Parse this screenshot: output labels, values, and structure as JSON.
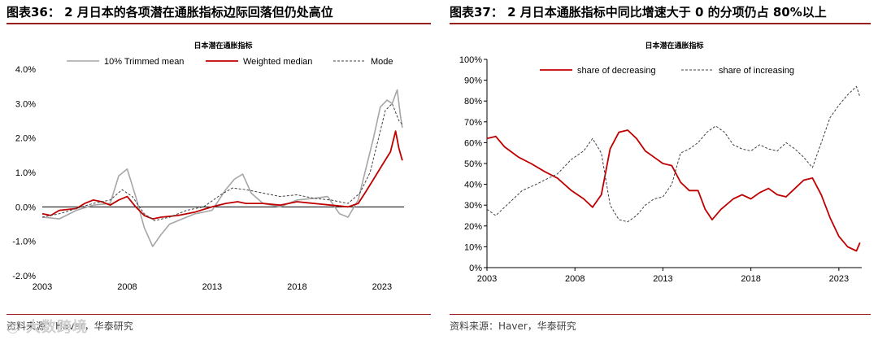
{
  "left": {
    "panel_title": "图表36：  2 月日本的各项潜在通胀指标边际回落但仍处高位",
    "source": "资料来源：Haver，华泰研究",
    "watermark": "大数跨境"
  },
  "right": {
    "panel_title": "图表37：  2 月日本通胀指标中同比增速大于 0 的分项仍占 80%以上",
    "source": "资料来源：Haver，华泰研究"
  },
  "colors": {
    "accent": "#9a1f1f",
    "series_red": "#c00000",
    "series_gray": "#a6a6a6",
    "series_dash": "#404040"
  },
  "chart_data": [
    {
      "type": "line",
      "title": "日本潜在通胀指标",
      "x_ticks": [
        "2003",
        "2008",
        "2013",
        "2018",
        "2023"
      ],
      "y_ticks": [
        "4.0%",
        "3.0%",
        "2.0%",
        "1.0%",
        "0.0%",
        "-1.0%",
        "-2.0%"
      ],
      "ylim": [
        -2.0,
        4.0
      ],
      "xlim": [
        2003,
        2024.3
      ],
      "legend_position": "top",
      "series": [
        {
          "name": "10%  Trimmed mean",
          "style": "gray-solid",
          "points": [
            [
              2003,
              -0.3
            ],
            [
              2004,
              -0.35
            ],
            [
              2005,
              -0.1
            ],
            [
              2006,
              0.05
            ],
            [
              2007,
              0.1
            ],
            [
              2007.5,
              0.9
            ],
            [
              2008,
              1.1
            ],
            [
              2008.5,
              0.3
            ],
            [
              2009,
              -0.6
            ],
            [
              2009.5,
              -1.15
            ],
            [
              2010,
              -0.8
            ],
            [
              2010.5,
              -0.5
            ],
            [
              2011,
              -0.4
            ],
            [
              2012,
              -0.2
            ],
            [
              2013,
              -0.1
            ],
            [
              2013.8,
              0.5
            ],
            [
              2014.3,
              0.8
            ],
            [
              2014.8,
              0.95
            ],
            [
              2015.3,
              0.4
            ],
            [
              2016,
              0.1
            ],
            [
              2017,
              0.0
            ],
            [
              2018,
              0.2
            ],
            [
              2019,
              0.25
            ],
            [
              2019.8,
              0.3
            ],
            [
              2020.5,
              -0.2
            ],
            [
              2021,
              -0.3
            ],
            [
              2021.6,
              0.2
            ],
            [
              2022,
              1.0
            ],
            [
              2022.5,
              2.0
            ],
            [
              2022.9,
              2.9
            ],
            [
              2023.3,
              3.1
            ],
            [
              2023.6,
              3.0
            ],
            [
              2023.9,
              3.4
            ],
            [
              2024.1,
              2.6
            ],
            [
              2024.2,
              2.3
            ]
          ]
        },
        {
          "name": "Weighted median",
          "style": "red-solid",
          "points": [
            [
              2003,
              -0.2
            ],
            [
              2003.5,
              -0.25
            ],
            [
              2004,
              -0.1
            ],
            [
              2005,
              -0.05
            ],
            [
              2005.5,
              0.1
            ],
            [
              2006,
              0.2
            ],
            [
              2006.5,
              0.15
            ],
            [
              2007,
              0.05
            ],
            [
              2007.5,
              0.2
            ],
            [
              2008,
              0.3
            ],
            [
              2008.5,
              0.0
            ],
            [
              2009,
              -0.25
            ],
            [
              2009.5,
              -0.35
            ],
            [
              2010,
              -0.3
            ],
            [
              2011,
              -0.25
            ],
            [
              2012,
              -0.15
            ],
            [
              2013,
              0.0
            ],
            [
              2013.8,
              0.1
            ],
            [
              2014.5,
              0.15
            ],
            [
              2015,
              0.1
            ],
            [
              2016,
              0.1
            ],
            [
              2017,
              0.05
            ],
            [
              2018,
              0.15
            ],
            [
              2019,
              0.1
            ],
            [
              2020,
              0.05
            ],
            [
              2021,
              0.0
            ],
            [
              2021.6,
              0.1
            ],
            [
              2022,
              0.4
            ],
            [
              2022.5,
              0.8
            ],
            [
              2023,
              1.2
            ],
            [
              2023.5,
              1.6
            ],
            [
              2023.8,
              2.2
            ],
            [
              2024,
              1.7
            ],
            [
              2024.2,
              1.35
            ]
          ]
        },
        {
          "name": "Mode",
          "style": "dark-dashed",
          "points": [
            [
              2003,
              -0.3
            ],
            [
              2004,
              -0.2
            ],
            [
              2005,
              -0.05
            ],
            [
              2006,
              0.1
            ],
            [
              2007,
              0.2
            ],
            [
              2007.7,
              0.5
            ],
            [
              2008.3,
              0.3
            ],
            [
              2009,
              -0.2
            ],
            [
              2009.6,
              -0.4
            ],
            [
              2010.5,
              -0.3
            ],
            [
              2011.5,
              -0.1
            ],
            [
              2012.5,
              0.0
            ],
            [
              2013.5,
              0.35
            ],
            [
              2014.2,
              0.55
            ],
            [
              2015,
              0.5
            ],
            [
              2016,
              0.4
            ],
            [
              2017,
              0.3
            ],
            [
              2018,
              0.35
            ],
            [
              2019,
              0.25
            ],
            [
              2020,
              0.2
            ],
            [
              2021,
              0.1
            ],
            [
              2021.7,
              0.4
            ],
            [
              2022.3,
              1.0
            ],
            [
              2022.8,
              2.0
            ],
            [
              2023.2,
              2.8
            ],
            [
              2023.6,
              3.0
            ],
            [
              2024,
              2.5
            ],
            [
              2024.2,
              2.4
            ]
          ]
        }
      ]
    },
    {
      "type": "line",
      "title": "日本潜在通胀指标",
      "x_ticks": [
        "2003",
        "2008",
        "2013",
        "2018",
        "2023"
      ],
      "y_ticks": [
        "100%",
        "90%",
        "80%",
        "70%",
        "60%",
        "50%",
        "40%",
        "30%",
        "20%",
        "10%",
        "0%"
      ],
      "ylim": [
        0,
        100
      ],
      "xlim": [
        2003,
        2024.3
      ],
      "legend_position": "top",
      "series": [
        {
          "name": "share of decreasing",
          "style": "red-solid",
          "points": [
            [
              2003,
              62
            ],
            [
              2003.5,
              63
            ],
            [
              2004,
              58
            ],
            [
              2004.8,
              53
            ],
            [
              2005.5,
              50
            ],
            [
              2006.3,
              46
            ],
            [
              2007,
              43
            ],
            [
              2007.8,
              37
            ],
            [
              2008.5,
              33
            ],
            [
              2009,
              29
            ],
            [
              2009.5,
              35
            ],
            [
              2010,
              57
            ],
            [
              2010.5,
              65
            ],
            [
              2011,
              66
            ],
            [
              2011.5,
              62
            ],
            [
              2012,
              56
            ],
            [
              2012.5,
              53
            ],
            [
              2013,
              50
            ],
            [
              2013.5,
              49
            ],
            [
              2014,
              41
            ],
            [
              2014.5,
              37
            ],
            [
              2015,
              37
            ],
            [
              2015.4,
              28
            ],
            [
              2015.8,
              23
            ],
            [
              2016.3,
              28
            ],
            [
              2017,
              33
            ],
            [
              2017.5,
              35
            ],
            [
              2018,
              33
            ],
            [
              2018.5,
              36
            ],
            [
              2019,
              38
            ],
            [
              2019.5,
              35
            ],
            [
              2020,
              34
            ],
            [
              2020.5,
              38
            ],
            [
              2021,
              42
            ],
            [
              2021.5,
              43
            ],
            [
              2022,
              35
            ],
            [
              2022.5,
              24
            ],
            [
              2023,
              15
            ],
            [
              2023.5,
              10
            ],
            [
              2024,
              8
            ],
            [
              2024.2,
              12
            ]
          ]
        },
        {
          "name": "share of increasing",
          "style": "dark-dashed",
          "points": [
            [
              2003,
              28
            ],
            [
              2003.5,
              25
            ],
            [
              2004,
              29
            ],
            [
              2005,
              37
            ],
            [
              2005.8,
              40
            ],
            [
              2006.5,
              43
            ],
            [
              2007,
              45
            ],
            [
              2007.8,
              52
            ],
            [
              2008.5,
              56
            ],
            [
              2009,
              62
            ],
            [
              2009.5,
              55
            ],
            [
              2010,
              30
            ],
            [
              2010.5,
              23
            ],
            [
              2011,
              22
            ],
            [
              2011.5,
              25
            ],
            [
              2012,
              30
            ],
            [
              2012.5,
              33
            ],
            [
              2013,
              34
            ],
            [
              2013.5,
              40
            ],
            [
              2014,
              55
            ],
            [
              2014.5,
              57
            ],
            [
              2015,
              60
            ],
            [
              2015.5,
              65
            ],
            [
              2016,
              68
            ],
            [
              2016.5,
              65
            ],
            [
              2017,
              59
            ],
            [
              2017.5,
              57
            ],
            [
              2018,
              56
            ],
            [
              2018.5,
              59
            ],
            [
              2019,
              57
            ],
            [
              2019.5,
              56
            ],
            [
              2020,
              60
            ],
            [
              2020.5,
              57
            ],
            [
              2021,
              53
            ],
            [
              2021.5,
              48
            ],
            [
              2022,
              60
            ],
            [
              2022.5,
              72
            ],
            [
              2023,
              78
            ],
            [
              2023.5,
              83
            ],
            [
              2024,
              87
            ],
            [
              2024.2,
              82
            ]
          ]
        }
      ]
    }
  ]
}
